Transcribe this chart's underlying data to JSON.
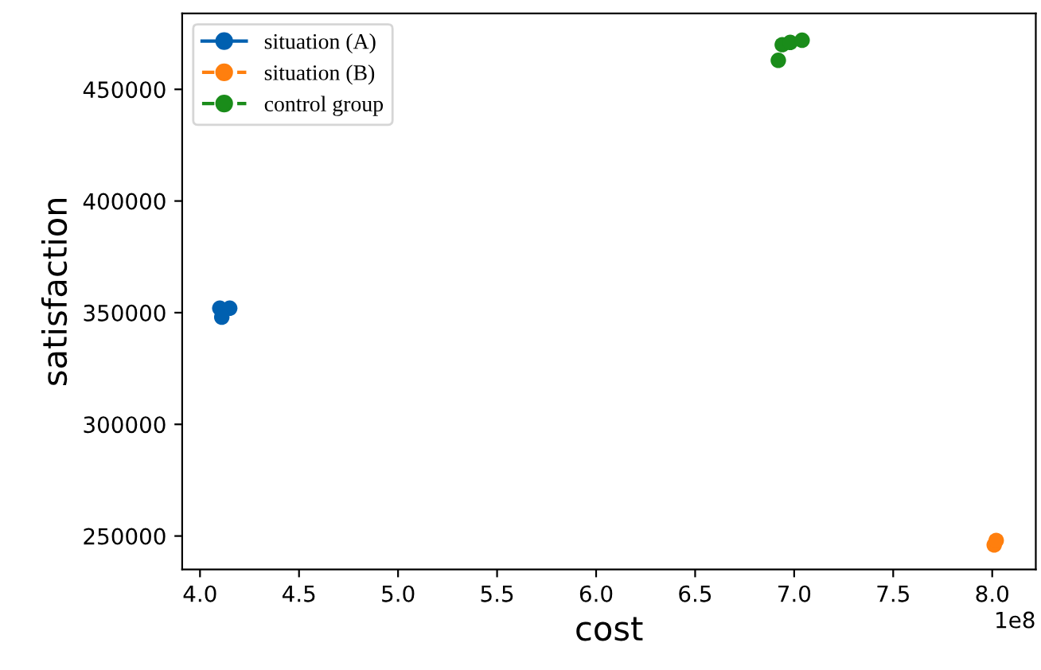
{
  "chart_data": {
    "type": "scatter",
    "xlabel": "cost",
    "ylabel": "satisfaction",
    "series": [
      {
        "name": "situation (A)",
        "color": "#0060b0",
        "line_style": "solid",
        "x": [
          4.1,
          4.15,
          4.11
        ],
        "values": [
          352000,
          352000,
          348000
        ]
      },
      {
        "name": "situation (B)",
        "color": "#ff7f0e",
        "line_style": "dashed",
        "x": [
          8.01,
          8.02
        ],
        "values": [
          246000,
          248000
        ]
      },
      {
        "name": "control group",
        "color": "#1a8c1a",
        "line_style": "dashed",
        "x": [
          6.92,
          6.94,
          6.98,
          7.04
        ],
        "values": [
          463000,
          470000,
          471000,
          472000
        ]
      }
    ],
    "marker": "circle",
    "legend": "top left",
    "grid": false,
    "xlim": [
      3.91,
      8.22
    ],
    "xticks": [
      {
        "value": 4,
        "label": "4.0"
      },
      4.5,
      {
        "value": 5,
        "label": "5.0"
      },
      5.5,
      {
        "value": 6,
        "label": "6.0"
      },
      6.5,
      {
        "value": 7,
        "label": "7.0"
      },
      7.5,
      {
        "value": 8,
        "label": "8.0"
      }
    ],
    "ylim": [
      235000,
      484000
    ],
    "yticks": [
      250000,
      300000,
      350000,
      400000,
      450000
    ],
    "annotations": [
      "1e8"
    ]
  }
}
